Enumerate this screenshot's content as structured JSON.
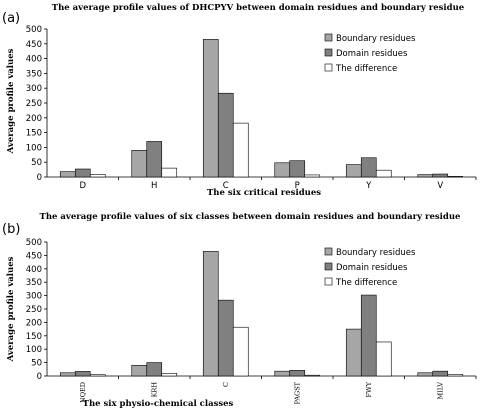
{
  "chart_data": [
    {
      "type": "bar",
      "panel_label": "(a)",
      "title": "The average profile values of DHCPYV between domain residues and boundary residue",
      "xlabel": "The six critical residues",
      "ylabel": "Average profile values",
      "categories": [
        "D",
        "H",
        "C",
        "P",
        "Y",
        "V"
      ],
      "ylim": [
        0,
        500
      ],
      "yticks": [
        "0",
        "50",
        "100",
        "150",
        "200",
        "250",
        "300",
        "350",
        "400",
        "450",
        "500"
      ],
      "legend_position": "top-right",
      "series": [
        {
          "name": "Boundary residues",
          "color": "#a6a6a6",
          "values": [
            18,
            90,
            465,
            48,
            42,
            8
          ]
        },
        {
          "name": "Domain residues",
          "color": "#808080",
          "values": [
            27,
            120,
            283,
            55,
            65,
            10
          ]
        },
        {
          "name": "The difference",
          "color": "#ffffff",
          "values": [
            9,
            30,
            182,
            7,
            23,
            2
          ]
        }
      ]
    },
    {
      "type": "bar",
      "panel_label": "(b)",
      "title": "The average profile values of six classes between domain residues and boundary residue",
      "xlabel": "The six physio-chemical classes",
      "ylabel": "Average profile values",
      "categories": [
        "NQED",
        "KRH",
        "C",
        "PAGST",
        "FWY",
        "MILV"
      ],
      "ylim": [
        0,
        500
      ],
      "yticks": [
        "0",
        "50",
        "100",
        "150",
        "200",
        "250",
        "300",
        "350",
        "400",
        "450",
        "500"
      ],
      "legend_position": "top-right",
      "series": [
        {
          "name": "Boundary residues",
          "color": "#a6a6a6",
          "values": [
            12,
            40,
            465,
            18,
            175,
            12
          ]
        },
        {
          "name": "Domain residues",
          "color": "#808080",
          "values": [
            17,
            50,
            283,
            21,
            302,
            18
          ]
        },
        {
          "name": "The difference",
          "color": "#ffffff",
          "values": [
            5,
            10,
            182,
            3,
            127,
            6
          ]
        }
      ]
    }
  ]
}
